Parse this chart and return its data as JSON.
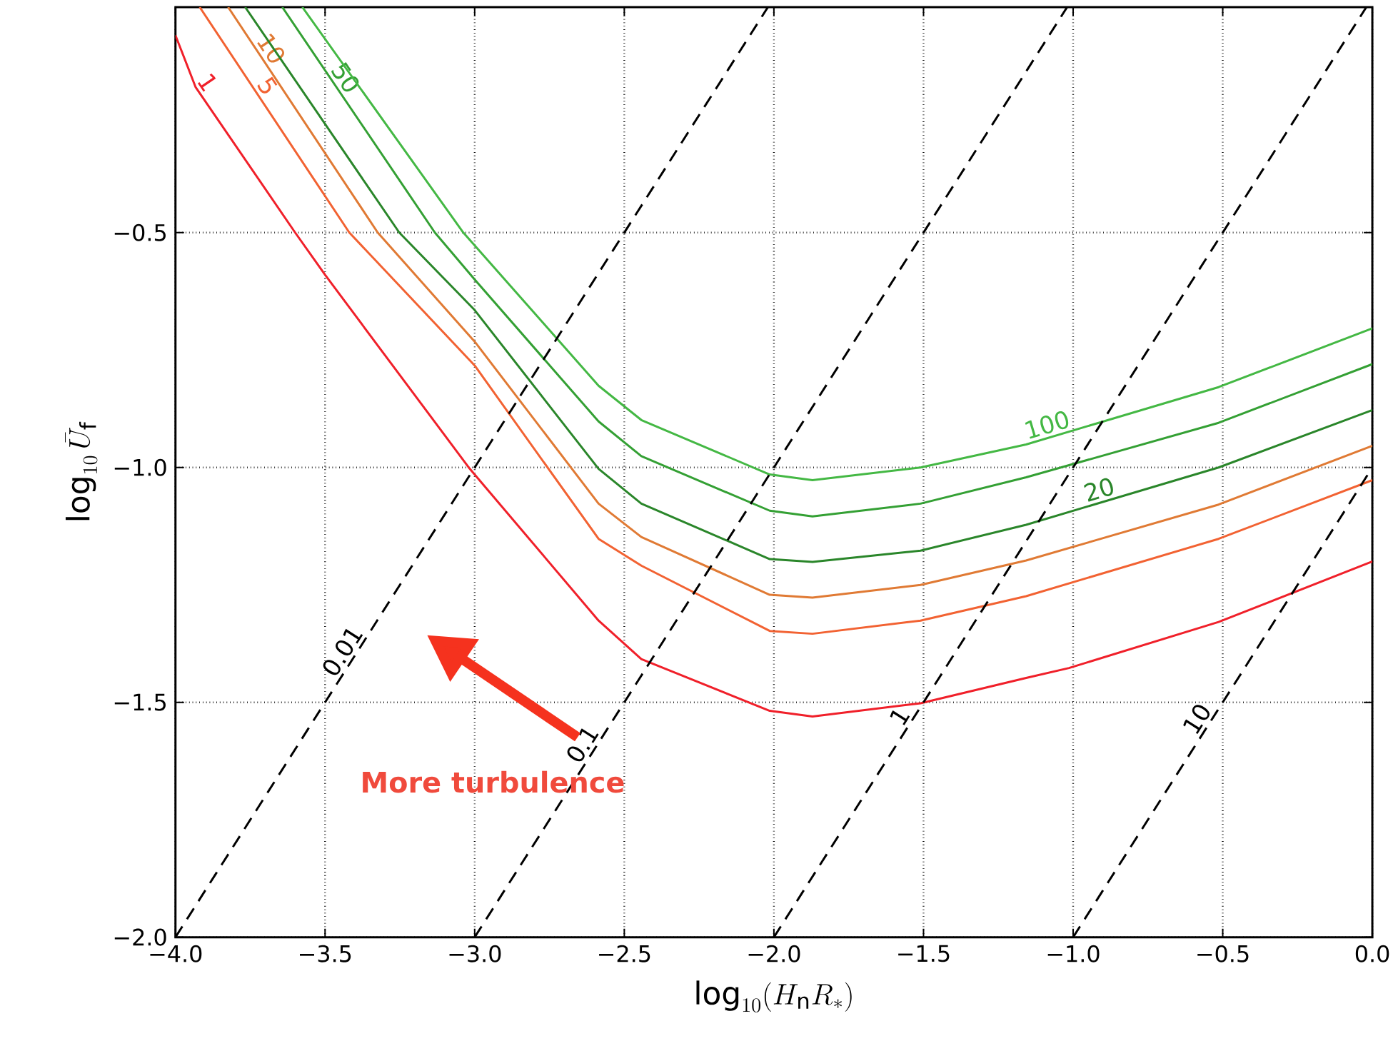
{
  "chart_data": {
    "type": "line",
    "xlabel": "\\log_{10}(H_\\mathrm{n}R_*)",
    "ylabel": "\\log_{10}\\bar{U}_\\mathrm{f}",
    "xlim": [
      -4.0,
      0.0
    ],
    "ylim": [
      -2.0,
      -0.02
    ],
    "xticks": [
      {
        "value": -4.0,
        "label": "−4.0"
      },
      {
        "value": -3.5,
        "label": "−3.5"
      },
      {
        "value": -3.0,
        "label": "−3.0"
      },
      {
        "value": -2.5,
        "label": "−2.5"
      },
      {
        "value": -2.0,
        "label": "−2.0"
      },
      {
        "value": -1.5,
        "label": "−1.5"
      },
      {
        "value": -1.0,
        "label": "−1.0"
      },
      {
        "value": -0.5,
        "label": "−0.5"
      },
      {
        "value": 0.0,
        "label": "0.0"
      }
    ],
    "yticks": [
      {
        "value": -2.0,
        "label": "−2.0"
      },
      {
        "value": -1.5,
        "label": "−1.5"
      },
      {
        "value": -1.0,
        "label": "−1.0"
      },
      {
        "value": -0.5,
        "label": "−0.5"
      }
    ],
    "grid": true,
    "series": [
      {
        "name": "1",
        "color": "#f0202a",
        "line_style": "solid",
        "x": [
          -4.0,
          -3.933,
          -3.6,
          -3.5,
          -3.02,
          -2.586,
          -2.443,
          -2.014,
          -1.871,
          -1.51,
          -1.157,
          -1.014,
          -0.514,
          0.0
        ],
        "values": [
          -0.08,
          -0.19,
          -0.5,
          -0.59,
          -1.0,
          -1.326,
          -1.408,
          -1.518,
          -1.53,
          -1.502,
          -1.448,
          -1.427,
          -1.329,
          -1.2
        ]
      },
      {
        "name": "5",
        "color": "#f26232",
        "line_style": "solid",
        "x": [
          -3.919,
          -3.419,
          -3.0,
          -2.586,
          -2.443,
          -2.014,
          -1.871,
          -1.51,
          -1.157,
          -0.514,
          0.0
        ],
        "values": [
          -0.02,
          -0.5,
          -0.783,
          -1.152,
          -1.209,
          -1.348,
          -1.354,
          -1.326,
          -1.274,
          -1.152,
          -1.027
        ]
      },
      {
        "name": "10",
        "color": "#e07a34",
        "line_style": "solid",
        "x": [
          -3.824,
          -3.324,
          -3.0,
          -2.586,
          -2.443,
          -2.014,
          -1.871,
          -1.51,
          -1.157,
          -0.514,
          0.0
        ],
        "values": [
          -0.02,
          -0.5,
          -0.732,
          -1.077,
          -1.148,
          -1.271,
          -1.277,
          -1.25,
          -1.198,
          -1.079,
          -0.954
        ]
      },
      {
        "name": "20",
        "color": "#2a862a",
        "line_style": "solid",
        "x": [
          -3.767,
          -3.252,
          -3.0,
          -2.586,
          -2.443,
          -2.014,
          -1.871,
          -1.51,
          -1.157,
          -0.514,
          0.0
        ],
        "values": [
          -0.02,
          -0.5,
          -0.665,
          -1.003,
          -1.077,
          -1.195,
          -1.201,
          -1.177,
          -1.122,
          -1.0,
          -0.878
        ]
      },
      {
        "name": "50",
        "color": "#34a034",
        "line_style": "solid",
        "x": [
          -3.643,
          -3.133,
          -3.0,
          -2.586,
          -2.443,
          -2.014,
          -1.871,
          -1.51,
          -1.157,
          -0.514,
          0.0
        ],
        "values": [
          -0.02,
          -0.5,
          -0.6,
          -0.902,
          -0.976,
          -1.092,
          -1.104,
          -1.077,
          -1.021,
          -0.905,
          -0.78
        ]
      },
      {
        "name": "100",
        "color": "#44b844",
        "line_style": "solid",
        "x": [
          -3.576,
          -3.038,
          -2.586,
          -2.443,
          -2.014,
          -1.871,
          -1.51,
          -1.157,
          -0.514,
          0.0
        ],
        "values": [
          -0.02,
          -0.5,
          -0.826,
          -0.899,
          -1.015,
          -1.027,
          -1.0,
          -0.951,
          -0.829,
          -0.704
        ]
      },
      {
        "name": "0.01",
        "color": "#000000",
        "line_style": "dashed",
        "x": [
          -4.0,
          -2.02
        ],
        "values": [
          -2.0,
          -0.02
        ]
      },
      {
        "name": "0.1",
        "color": "#000000",
        "line_style": "dashed",
        "x": [
          -3.0,
          -1.02
        ],
        "values": [
          -2.0,
          -0.02
        ]
      },
      {
        "name": "1",
        "color": "#000000",
        "line_style": "dashed",
        "x": [
          -2.0,
          -0.02
        ],
        "values": [
          -2.0,
          -0.02
        ]
      },
      {
        "name": "10",
        "color": "#000000",
        "line_style": "dashed",
        "x": [
          -1.0,
          0.0
        ],
        "values": [
          -2.0,
          -1.0
        ]
      }
    ],
    "annotations": [
      "More turbulence"
    ]
  }
}
